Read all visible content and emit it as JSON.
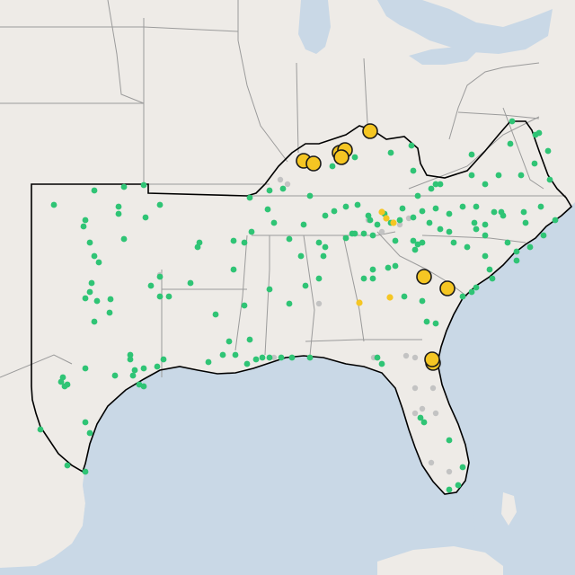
{
  "map": {
    "colors": {
      "water": "#c9d8e6",
      "land": "#eeebe7",
      "state_line": "#9b9b9b",
      "region_outline": "#000000",
      "green_dot": "#2fc475",
      "gray_dot": "#c3c3c3",
      "yellow_marker": "#f5c623"
    },
    "marker_legend": {
      "green": "green-dot",
      "gray": "gray-dot",
      "yellow_small": "small-yellow-dot",
      "yellow_large": "large-yellow-marker"
    }
  }
}
